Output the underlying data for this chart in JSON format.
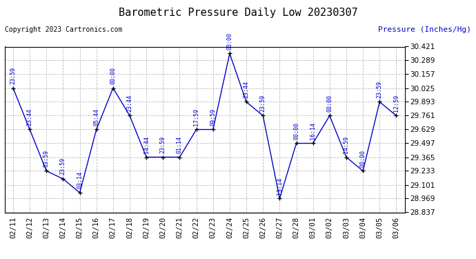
{
  "title": "Barometric Pressure Daily Low 20230307",
  "copyright": "Copyright 2023 Cartronics.com",
  "ylabel": "Pressure (Inches/Hg)",
  "dates": [
    "02/11",
    "02/12",
    "02/13",
    "02/14",
    "02/15",
    "02/16",
    "02/17",
    "02/18",
    "02/19",
    "02/20",
    "02/21",
    "02/22",
    "02/23",
    "02/24",
    "02/25",
    "02/26",
    "02/27",
    "02/28",
    "03/01",
    "03/02",
    "03/03",
    "03/04",
    "03/05",
    "03/06"
  ],
  "values": [
    30.025,
    29.629,
    29.233,
    29.157,
    29.025,
    29.629,
    30.025,
    29.761,
    29.365,
    29.365,
    29.365,
    29.629,
    29.629,
    30.355,
    29.893,
    29.761,
    28.969,
    29.497,
    29.497,
    29.761,
    29.365,
    29.233,
    29.893,
    29.761
  ],
  "times": [
    "23:59",
    "23:44",
    "03:59",
    "23:59",
    "03:14",
    "05:44",
    "00:00",
    "23:44",
    "14:44",
    "23:59",
    "01:14",
    "17:59",
    "09:59",
    "00:00",
    "23:44",
    "23:59",
    "13:14",
    "00:00",
    "16:14",
    "00:00",
    "14:59",
    "00:00",
    "23:59",
    "12:59"
  ],
  "ylim": [
    28.837,
    30.421
  ],
  "yticks": [
    28.837,
    28.969,
    29.101,
    29.233,
    29.365,
    29.497,
    29.629,
    29.761,
    29.893,
    30.025,
    30.157,
    30.289,
    30.421
  ],
  "line_color": "#0000cc",
  "marker_color": "#000000",
  "grid_color": "#bbbbbb",
  "bg_color": "#ffffff",
  "title_fontsize": 11,
  "tick_fontsize": 7.5,
  "annotation_fontsize": 6,
  "copyright_fontsize": 7,
  "ylabel_fontsize": 8
}
